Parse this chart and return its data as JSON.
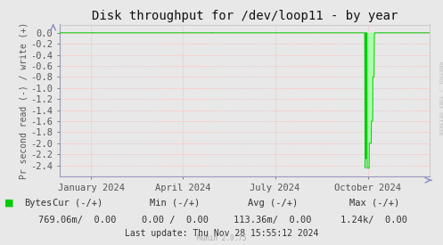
{
  "title": "Disk throughput for /dev/loop11 - by year",
  "ylabel": "Pr second read (-) / write (+)",
  "background_color": "#e8e8e8",
  "plot_background_color": "#e8e8e8",
  "grid_color": "#ffaaaa",
  "ylim": [
    -2.6,
    0.15
  ],
  "yticks": [
    0.0,
    -0.2,
    -0.4,
    -0.6,
    -0.8,
    -1.0,
    -1.2,
    -1.4,
    -1.6,
    -1.8,
    -2.0,
    -2.2,
    -2.4
  ],
  "xaxis_start": 1701388800,
  "xaxis_end": 1733011200,
  "xtick_positions": [
    1704067200,
    1711929600,
    1719792000,
    1727740800
  ],
  "xtick_labels": [
    "January 2024",
    "April 2024",
    "July 2024",
    "October 2024"
  ],
  "legend_label": "Bytes",
  "legend_color": "#00cc00",
  "last_update": "Last update: Thu Nov 28 15:55:12 2024",
  "munin_text": "Munin 2.0.75",
  "rrdtool_text": "RRDTOOL / TOBI OETIKER",
  "line_color": "#00cc00",
  "fill_color": "#aaffaa",
  "title_fontsize": 10,
  "tick_fontsize": 7.5,
  "ylabel_fontsize": 7,
  "stats_header_fontsize": 7.5,
  "stats_val_fontsize": 7.5
}
